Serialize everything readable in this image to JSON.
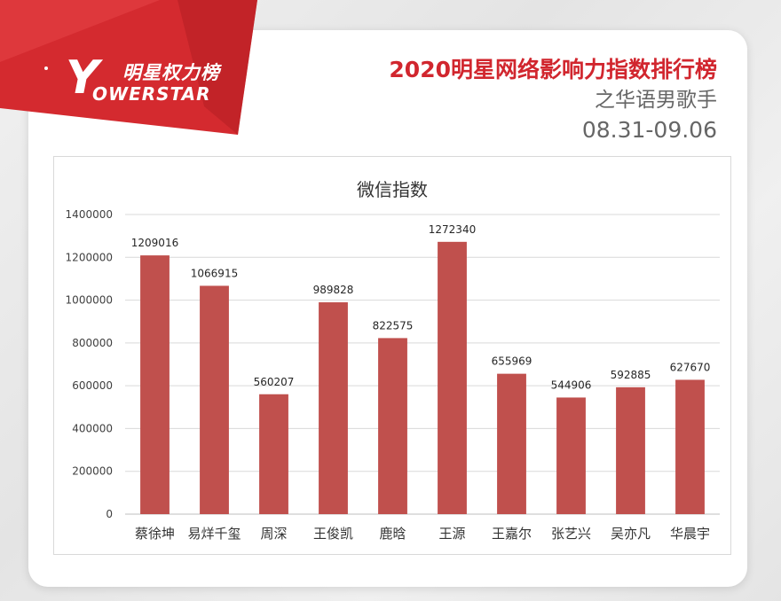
{
  "logo": {
    "brand_cn": "明星权力榜",
    "brand_letter": "Y",
    "brand_en": "OWERSTAR"
  },
  "header": {
    "title": "2020明星网络影响力指数排行榜",
    "subtitle": "之华语男歌手",
    "date_range": "08.31-09.06"
  },
  "colors": {
    "bar": "#c0504d",
    "title_red": "#d1262e",
    "banner_red": "#d42a2f"
  },
  "chart_data": {
    "type": "bar",
    "title": "微信指数",
    "categories": [
      "蔡徐坤",
      "易烊千玺",
      "周深",
      "王俊凯",
      "鹿晗",
      "王源",
      "王嘉尔",
      "张艺兴",
      "吴亦凡",
      "华晨宇"
    ],
    "values": [
      1209016,
      1066915,
      560207,
      989828,
      822575,
      1272340,
      655969,
      544906,
      592885,
      627670
    ],
    "ylim": [
      0,
      1400000
    ],
    "yticks": [
      0,
      200000,
      400000,
      600000,
      800000,
      1000000,
      1200000,
      1400000
    ],
    "grid": true,
    "legend": "none"
  }
}
